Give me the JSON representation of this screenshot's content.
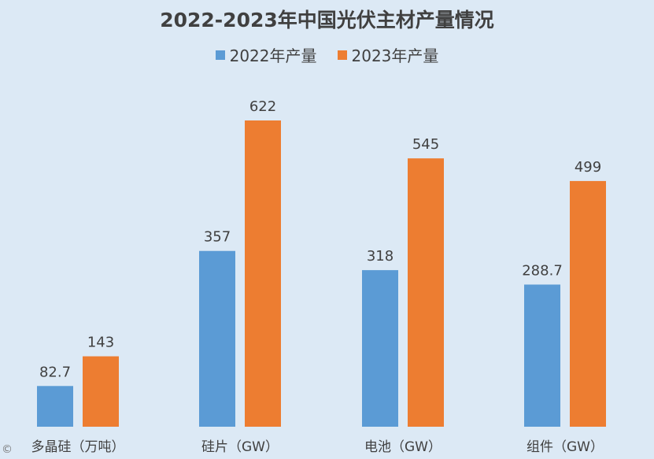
{
  "chart_data": {
    "type": "bar",
    "title": "2022-2023年中国光伏主材产量情况",
    "categories": [
      "多晶硅（万吨）",
      "硅片（GW）",
      "电池（GW）",
      "组件（GW）"
    ],
    "series": [
      {
        "name": "2022年产量",
        "color": "#5b9bd5",
        "values": [
          82.7,
          357,
          318,
          288.7
        ]
      },
      {
        "name": "2023年产量",
        "color": "#ed7d31",
        "values": [
          143,
          622,
          545,
          499
        ]
      }
    ],
    "data_labels": [
      [
        "82.7",
        "357",
        "318",
        "288.7"
      ],
      [
        "143",
        "622",
        "545",
        "499"
      ]
    ],
    "ylim": [
      0,
      700
    ],
    "grid": false,
    "legend": "top-center",
    "watermark": "©"
  }
}
